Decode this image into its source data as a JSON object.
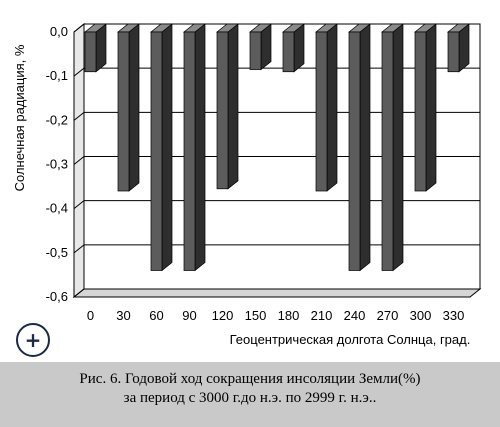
{
  "zoom_button": {
    "icon": "plus-icon",
    "symbol": "+"
  },
  "caption": {
    "line1": "Рис. 6. Годовой ход сокращения инсоляции Земли(%)",
    "line2": "за период с 3000 г.до н.э. по 2999 г. н.э.."
  },
  "chart_data": {
    "type": "bar",
    "style": "3d",
    "categories": [
      "0",
      "30",
      "60",
      "90",
      "120",
      "150",
      "180",
      "210",
      "240",
      "270",
      "300",
      "330"
    ],
    "values": [
      -0.09,
      -0.36,
      -0.54,
      -0.54,
      -0.355,
      -0.085,
      -0.09,
      -0.36,
      -0.54,
      -0.54,
      -0.36,
      -0.09
    ],
    "ylim": [
      -0.6,
      0.0
    ],
    "yticks": [
      "0,0",
      "-0,1",
      "-0,2",
      "-0,3",
      "-0,4",
      "-0,5",
      "-0,6"
    ],
    "xlabel": "Геоцентрическая долгота Солнца, град.",
    "ylabel": "Солнечная радиация, %",
    "grid": true,
    "colors": {
      "bar_front": "#5c5c5c",
      "bar_side": "#2e2e2e",
      "bar_top": "#8a8a8a",
      "grid": "#000000"
    }
  }
}
